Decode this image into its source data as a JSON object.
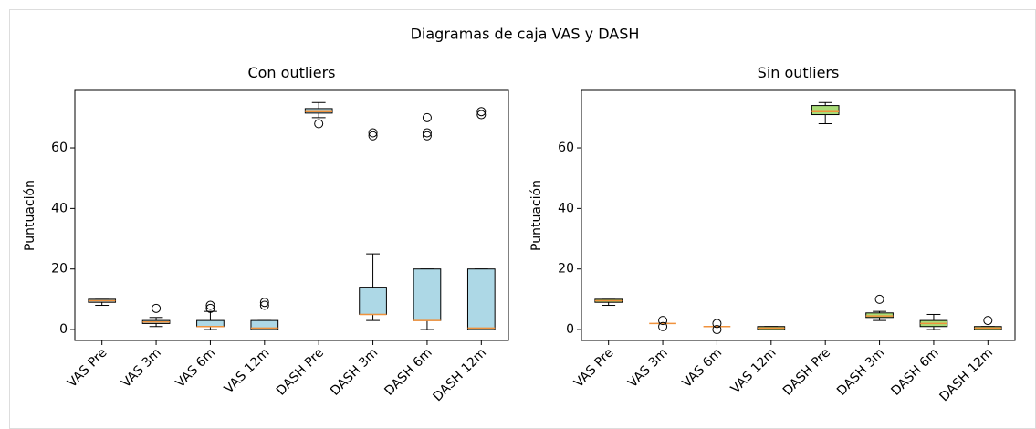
{
  "title": "Diagramas de caja VAS y DASH",
  "chart_data": [
    {
      "type": "box",
      "title": "Con outliers",
      "ylabel": "Puntuación",
      "color": "#add8e6",
      "median_color": "#f0923c",
      "categories": [
        "VAS Pre",
        "VAS 3m",
        "VAS 6m",
        "VAS 12m",
        "DASH Pre",
        "DASH 3m",
        "DASH 6m",
        "DASH 12m"
      ],
      "boxes": [
        {
          "whislo": 8,
          "q1": 9,
          "med": 9.5,
          "q3": 10,
          "whishi": 10,
          "fliers": []
        },
        {
          "whislo": 1,
          "q1": 2,
          "med": 2.5,
          "q3": 3,
          "whishi": 4,
          "fliers": [
            7
          ]
        },
        {
          "whislo": 0,
          "q1": 1,
          "med": 1,
          "q3": 3,
          "whishi": 6,
          "fliers": [
            7,
            8
          ]
        },
        {
          "whislo": 0,
          "q1": 0,
          "med": 0.5,
          "q3": 3,
          "whishi": 3,
          "fliers": [
            8,
            9
          ]
        },
        {
          "whislo": 70,
          "q1": 71.5,
          "med": 72,
          "q3": 73,
          "whishi": 75,
          "fliers": [
            68
          ]
        },
        {
          "whislo": 3,
          "q1": 5,
          "med": 5,
          "q3": 14,
          "whishi": 25,
          "fliers": [
            64,
            65
          ]
        },
        {
          "whislo": 0,
          "q1": 3,
          "med": 3,
          "q3": 20,
          "whishi": 20,
          "fliers": [
            64,
            65,
            70
          ]
        },
        {
          "whislo": 0,
          "q1": 0,
          "med": 0.5,
          "q3": 20,
          "whishi": 20,
          "fliers": [
            71,
            72
          ]
        }
      ],
      "ylim": [
        -3.6,
        79
      ],
      "yticks": [
        0,
        20,
        40,
        60
      ]
    },
    {
      "type": "box",
      "title": "Sin outliers",
      "ylabel": "Puntuación",
      "color": "#a8dc78",
      "median_color": "#f0923c",
      "categories": [
        "VAS Pre",
        "VAS 3m",
        "VAS 6m",
        "VAS 12m",
        "DASH Pre",
        "DASH 3m",
        "DASH 6m",
        "DASH 12m"
      ],
      "boxes": [
        {
          "whislo": 8,
          "q1": 9,
          "med": 9.5,
          "q3": 10,
          "whishi": 10,
          "fliers": []
        },
        {
          "whislo": 2,
          "q1": 2,
          "med": 2,
          "q3": 2,
          "whishi": 2,
          "fliers": [
            1,
            3
          ]
        },
        {
          "whislo": 1,
          "q1": 1,
          "med": 1,
          "q3": 1,
          "whishi": 1,
          "fliers": [
            0,
            2
          ]
        },
        {
          "whislo": 0,
          "q1": 0,
          "med": 0.5,
          "q3": 1,
          "whishi": 1,
          "fliers": []
        },
        {
          "whislo": 68,
          "q1": 71,
          "med": 72,
          "q3": 74,
          "whishi": 75,
          "fliers": []
        },
        {
          "whislo": 3,
          "q1": 4,
          "med": 4.5,
          "q3": 5.5,
          "whishi": 6,
          "fliers": [
            10
          ]
        },
        {
          "whislo": 0,
          "q1": 1,
          "med": 2,
          "q3": 3,
          "whishi": 5,
          "fliers": []
        },
        {
          "whislo": 0,
          "q1": 0,
          "med": 0.5,
          "q3": 1,
          "whishi": 1,
          "fliers": [
            3
          ]
        }
      ],
      "ylim": [
        -3.6,
        79
      ],
      "yticks": [
        0,
        20,
        40,
        60
      ]
    }
  ]
}
